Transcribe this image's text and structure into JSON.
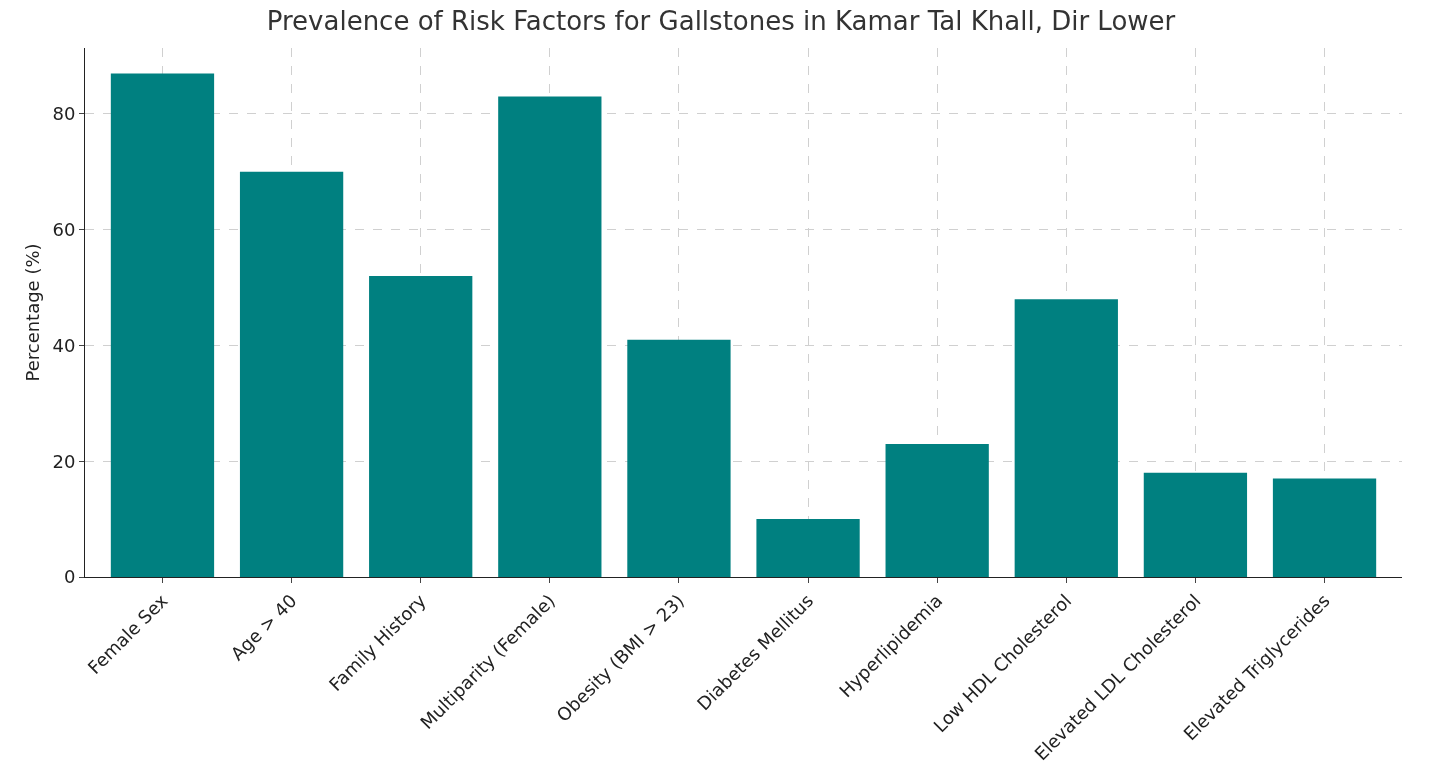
{
  "chart_data": {
    "type": "bar",
    "title": "Prevalence of Risk Factors for Gallstones in Kamar Tal Khall, Dir Lower",
    "ylabel": "Percentage (%)",
    "categories": [
      "Female Sex",
      "Age > 40",
      "Family History",
      "Multiparity (Female)",
      "Obesity (BMI > 23)",
      "Diabetes Mellitus",
      "Hyperlipidemia",
      "Low HDL Cholesterol",
      "Elevated LDL Cholesterol",
      "Elevated Triglycerides"
    ],
    "values": [
      87,
      70,
      52,
      83,
      41,
      10,
      23,
      48,
      18,
      17
    ],
    "color": "#008080",
    "ylim": [
      0,
      91.4
    ],
    "yticks": [
      0,
      20,
      40,
      60,
      80
    ],
    "grid": true
  }
}
